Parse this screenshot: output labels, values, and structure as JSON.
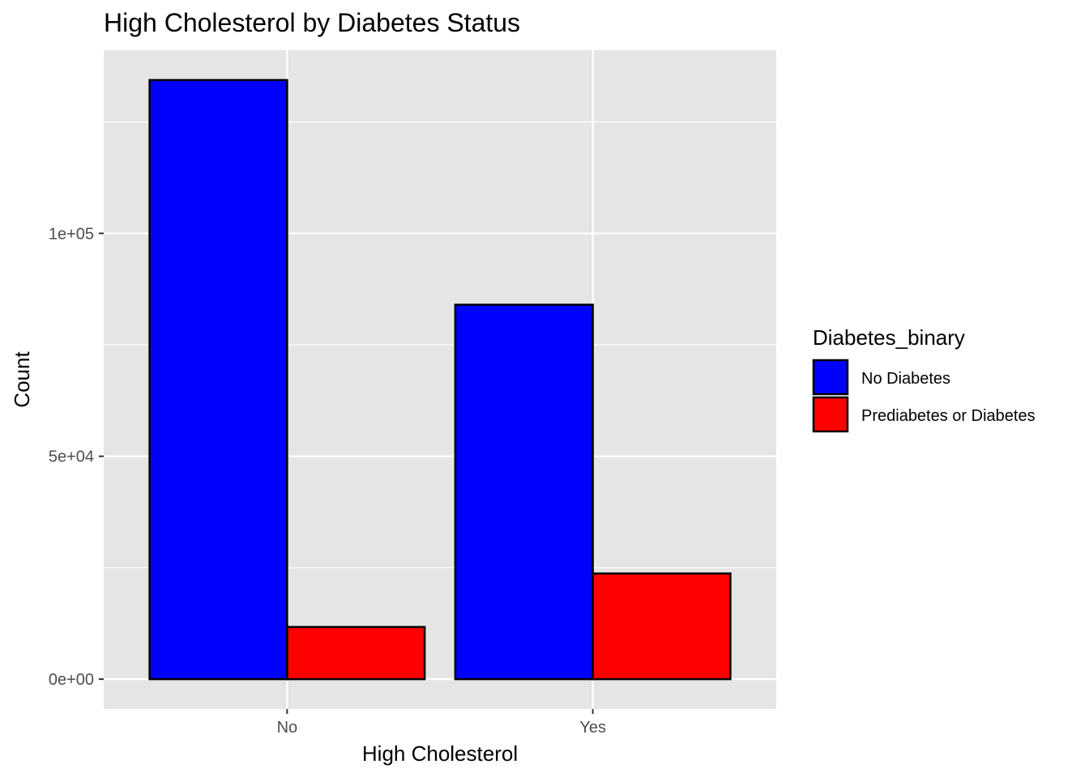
{
  "chart_data": {
    "type": "bar",
    "title": "High Cholesterol by Diabetes Status",
    "xlabel": "High Cholesterol",
    "ylabel": "Count",
    "categories": [
      "No",
      "Yes"
    ],
    "series": [
      {
        "name": "No Diabetes",
        "color": "#0000ff",
        "values": [
          134400,
          84000
        ]
      },
      {
        "name": "Prediabetes or Diabetes",
        "color": "#ff0000",
        "values": [
          11700,
          23700
        ]
      }
    ],
    "yticks": [
      0,
      50000,
      100000
    ],
    "ytick_labels": [
      "0e+00",
      "5e+04",
      "1e+05"
    ],
    "ylim": [
      -6700,
      141100
    ],
    "grid": true,
    "legend": {
      "title": "Diabetes_binary",
      "position": "right"
    }
  }
}
